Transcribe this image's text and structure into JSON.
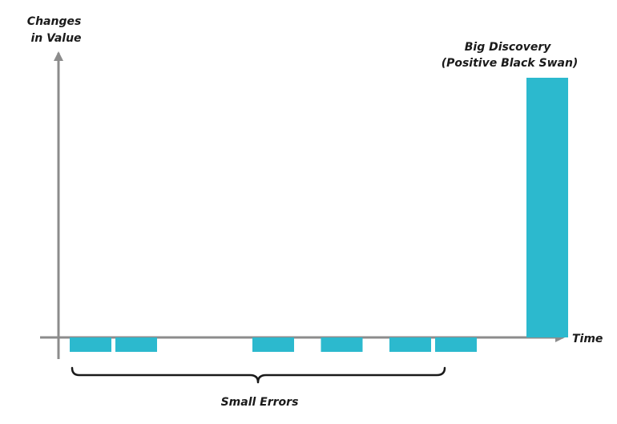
{
  "chart_data": {
    "type": "bar",
    "xlabel": "Time",
    "ylabel_lines": [
      "Changes",
      "in Value"
    ],
    "bars": [
      {
        "x": 1,
        "value": -1
      },
      {
        "x": 2,
        "value": -1
      },
      {
        "x": 5,
        "value": -1
      },
      {
        "x": 6.5,
        "value": -1
      },
      {
        "x": 8,
        "value": -1
      },
      {
        "x": 9,
        "value": -1
      },
      {
        "x": 11,
        "value": 18
      }
    ],
    "annotations": {
      "big": [
        "Big Discovery",
        "(Positive Black Swan)"
      ],
      "small": "Small Errors"
    },
    "grid": false,
    "legend": "none"
  },
  "colors": {
    "bar": "#2cb9ce",
    "axis": "#8c8c8c",
    "brace": "#1a1a1a",
    "text": "#1a1a1a"
  }
}
